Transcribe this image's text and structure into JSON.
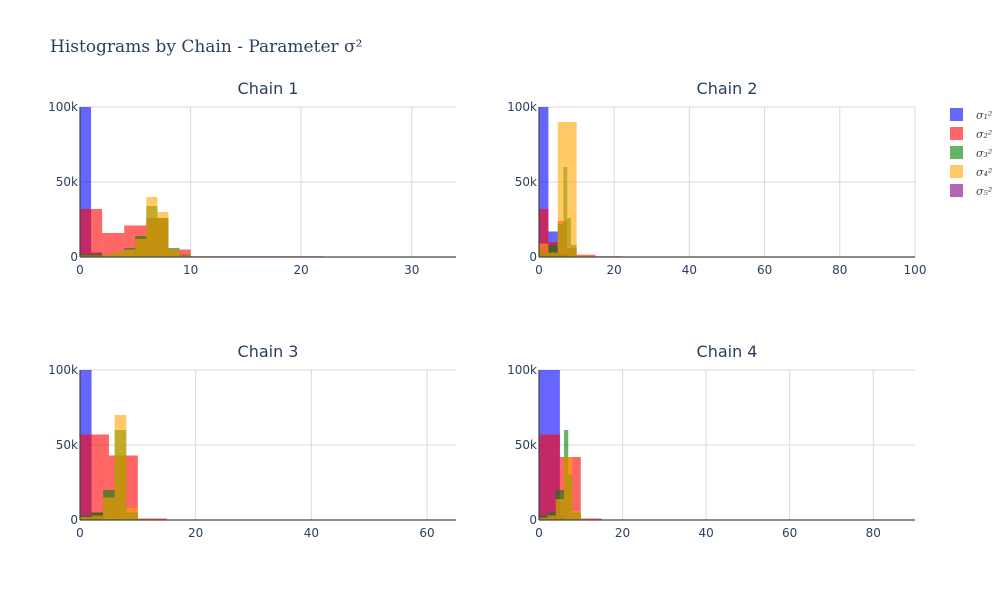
{
  "chart_data": {
    "type": "bar",
    "title": "Histograms by Chain - Parameter σ²",
    "legend_position": "right",
    "series_legend": [
      {
        "name": "σ₁²",
        "color": "#0000ff"
      },
      {
        "name": "σ₂²",
        "color": "#ff0000"
      },
      {
        "name": "σ₃²",
        "color": "#008000"
      },
      {
        "name": "σ₄²",
        "color": "#ffa500"
      },
      {
        "name": "σ₅²",
        "color": "#800080"
      }
    ],
    "panels": [
      {
        "title": "Chain 1",
        "xlim": [
          0,
          34
        ],
        "ylim": [
          0,
          100000
        ],
        "xticks": [
          0,
          10,
          20,
          30
        ],
        "xtick_labels": [
          "0",
          "10",
          "20",
          "30"
        ],
        "yticks": [
          0,
          50000,
          100000
        ],
        "ytick_labels": [
          "0",
          "50k",
          "100k"
        ],
        "series": [
          {
            "index": 0,
            "bins": [
              [
                0,
                1,
                100000
              ],
              [
                1,
                2,
                3000
              ]
            ]
          },
          {
            "index": 1,
            "bins": [
              [
                0,
                2,
                32000
              ],
              [
                2,
                4,
                16000
              ],
              [
                4,
                6,
                21000
              ],
              [
                6,
                8,
                26000
              ],
              [
                8,
                10,
                5000
              ],
              [
                10,
                22,
                500
              ]
            ]
          },
          {
            "index": 2,
            "bins": [
              [
                0,
                2,
                2000
              ],
              [
                2,
                3,
                1500
              ],
              [
                3,
                4,
                3000
              ],
              [
                4,
                5,
                6000
              ],
              [
                5,
                6,
                14000
              ],
              [
                6,
                7,
                34000
              ],
              [
                7,
                8,
                26000
              ],
              [
                8,
                9,
                6000
              ],
              [
                9,
                10,
                1500
              ]
            ]
          },
          {
            "index": 3,
            "bins": [
              [
                0,
                2,
                1000
              ],
              [
                2,
                3,
                1500
              ],
              [
                3,
                4,
                3000
              ],
              [
                4,
                5,
                5000
              ],
              [
                5,
                6,
                12000
              ],
              [
                6,
                7,
                40000
              ],
              [
                7,
                8,
                30000
              ],
              [
                8,
                9,
                5000
              ],
              [
                9,
                10,
                1000
              ]
            ]
          }
        ]
      },
      {
        "title": "Chain 2",
        "xlim": [
          0,
          100
        ],
        "ylim": [
          0,
          100000
        ],
        "xticks": [
          0,
          20,
          40,
          60,
          80,
          100
        ],
        "xtick_labels": [
          "0",
          "20",
          "40",
          "60",
          "80",
          "100"
        ],
        "yticks": [
          0,
          50000,
          100000
        ],
        "ytick_labels": [
          "0",
          "50k",
          "100k"
        ],
        "series": [
          {
            "index": 0,
            "bins": [
              [
                0,
                2.5,
                100000
              ],
              [
                2.5,
                5,
                17000
              ],
              [
                5,
                7.5,
                2000
              ]
            ]
          },
          {
            "index": 1,
            "bins": [
              [
                0,
                2.5,
                32000
              ],
              [
                2.5,
                5,
                10000
              ],
              [
                5,
                7.5,
                24000
              ],
              [
                7.5,
                10,
                6000
              ],
              [
                10,
                15,
                1500
              ],
              [
                15,
                22,
                500
              ]
            ]
          },
          {
            "index": 2,
            "bins": [
              [
                0,
                2.5,
                3000
              ],
              [
                2.5,
                5,
                8000
              ],
              [
                5,
                6.5,
                22000
              ],
              [
                6.5,
                7.5,
                60000
              ],
              [
                7.5,
                8.5,
                26000
              ],
              [
                8.5,
                10,
                8000
              ]
            ]
          },
          {
            "index": 3,
            "bins": [
              [
                0,
                2.5,
                9000
              ],
              [
                2.5,
                5,
                3000
              ],
              [
                5,
                10,
                90000
              ],
              [
                10,
                15,
                1000
              ]
            ]
          }
        ]
      },
      {
        "title": "Chain 3",
        "xlim": [
          0,
          65
        ],
        "ylim": [
          0,
          100000
        ],
        "xticks": [
          0,
          20,
          40,
          60
        ],
        "xtick_labels": [
          "0",
          "20",
          "40",
          "60"
        ],
        "yticks": [
          0,
          50000,
          100000
        ],
        "ytick_labels": [
          "0",
          "50k",
          "100k"
        ],
        "series": [
          {
            "index": 0,
            "bins": [
              [
                0,
                2,
                100000
              ],
              [
                2,
                4,
                5000
              ]
            ]
          },
          {
            "index": 1,
            "bins": [
              [
                0,
                5,
                57000
              ],
              [
                5,
                10,
                43000
              ],
              [
                10,
                15,
                1000
              ]
            ]
          },
          {
            "index": 2,
            "bins": [
              [
                0,
                2,
                3000
              ],
              [
                2,
                4,
                5000
              ],
              [
                4,
                6,
                20000
              ],
              [
                6,
                8,
                60000
              ],
              [
                8,
                10,
                5000
              ]
            ]
          },
          {
            "index": 3,
            "bins": [
              [
                0,
                2,
                2000
              ],
              [
                2,
                4,
                3000
              ],
              [
                4,
                6,
                15000
              ],
              [
                6,
                8,
                70000
              ],
              [
                8,
                10,
                8000
              ]
            ]
          }
        ]
      },
      {
        "title": "Chain 4",
        "xlim": [
          0,
          90
        ],
        "ylim": [
          0,
          100000
        ],
        "xticks": [
          0,
          20,
          40,
          60,
          80
        ],
        "xtick_labels": [
          "0",
          "20",
          "40",
          "60",
          "80"
        ],
        "yticks": [
          0,
          50000,
          100000
        ],
        "ytick_labels": [
          "0",
          "50k",
          "100k"
        ],
        "series": [
          {
            "index": 0,
            "bins": [
              [
                0,
                5,
                100000
              ],
              [
                5,
                6,
                3000
              ]
            ]
          },
          {
            "index": 1,
            "bins": [
              [
                0,
                5,
                57000
              ],
              [
                5,
                10,
                42000
              ],
              [
                10,
                15,
                1000
              ]
            ]
          },
          {
            "index": 2,
            "bins": [
              [
                0,
                2,
                3000
              ],
              [
                2,
                4,
                5000
              ],
              [
                4,
                6,
                20000
              ],
              [
                6,
                7,
                60000
              ],
              [
                7,
                8,
                30000
              ],
              [
                8,
                10,
                5000
              ]
            ]
          },
          {
            "index": 3,
            "bins": [
              [
                0,
                2,
                1500
              ],
              [
                2,
                4,
                3000
              ],
              [
                4,
                6,
                14000
              ],
              [
                6,
                8,
                42000
              ],
              [
                8,
                10,
                6000
              ]
            ]
          }
        ]
      }
    ]
  }
}
